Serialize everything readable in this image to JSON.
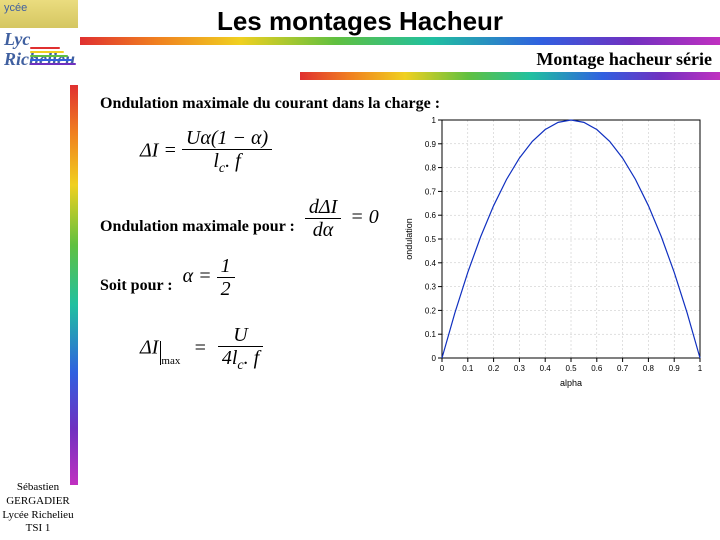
{
  "title": "Les montages Hacheur",
  "subtitle": "Montage hacheur série",
  "logo": {
    "line1": "ycée",
    "line2a": "Lyc",
    "line2b": "Richelieu"
  },
  "headings": {
    "h1": "Ondulation maximale du courant dans la charge :",
    "h2": "Ondulation maximale pour :",
    "h3": "Soit pour :"
  },
  "formulas": {
    "f1_lhs": "ΔI =",
    "f1_num": "Uα(1 − α)",
    "f1_den_a": "l",
    "f1_den_b": "c",
    "f1_den_c": ". f",
    "f2_num": "dΔI",
    "f2_den": "dα",
    "f2_rhs": "= 0",
    "f3_lhs": "α =",
    "f3_num": "1",
    "f3_den": "2",
    "f4_a": "ΔI",
    "f4_b": "max",
    "f4_c": "=",
    "f4_num": "U",
    "f4_den_a": "4l",
    "f4_den_b": "c",
    "f4_den_c": ". f"
  },
  "footer": {
    "l1": "Sébastien",
    "l2": "GERGADIER",
    "l3": "Lycée Richelieu",
    "l4": "TSI 1"
  },
  "chart": {
    "type": "line",
    "xlabel": "alpha",
    "ylabel": "ondulation",
    "xlim": [
      0,
      1
    ],
    "ylim": [
      0,
      1
    ],
    "xtick_step": 0.1,
    "ytick_step": 0.1,
    "xticks": [
      0,
      0.1,
      0.2,
      0.3,
      0.4,
      0.5,
      0.6,
      0.7,
      0.8,
      0.9,
      1
    ],
    "yticks": [
      0,
      0.1,
      0.2,
      0.3,
      0.4,
      0.5,
      0.6,
      0.7,
      0.8,
      0.9,
      1
    ],
    "line_color": "#1030c0",
    "line_width": 1.2,
    "axis_color": "#000000",
    "grid_color": "#c0c0c0",
    "grid_dash": "2,2",
    "background_color": "#ffffff",
    "tick_fontsize": 8,
    "label_fontsize": 9,
    "data": {
      "x": [
        0,
        0.05,
        0.1,
        0.15,
        0.2,
        0.25,
        0.3,
        0.35,
        0.4,
        0.45,
        0.5,
        0.55,
        0.6,
        0.65,
        0.7,
        0.75,
        0.8,
        0.85,
        0.9,
        0.95,
        1
      ],
      "y": [
        0,
        0.19,
        0.36,
        0.51,
        0.64,
        0.75,
        0.84,
        0.91,
        0.96,
        0.99,
        1,
        0.99,
        0.96,
        0.91,
        0.84,
        0.75,
        0.64,
        0.51,
        0.36,
        0.19,
        0
      ]
    }
  },
  "rainbow_colors": [
    "#e03030",
    "#f08020",
    "#f0d020",
    "#60c040",
    "#20c0a0",
    "#3060e0",
    "#7030c0",
    "#c030c0"
  ]
}
